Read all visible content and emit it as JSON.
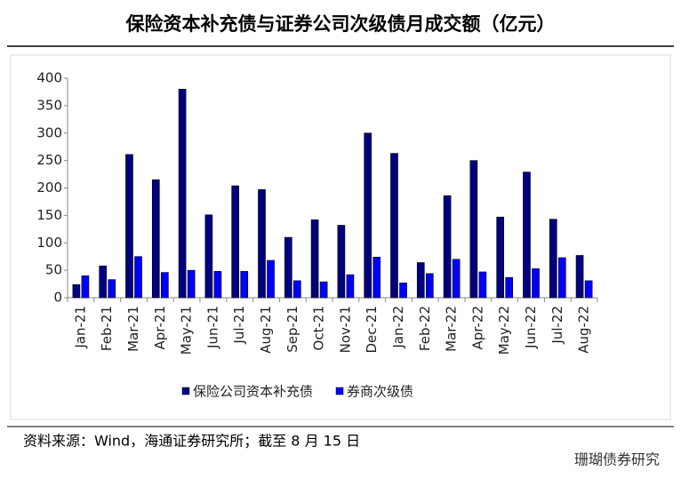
{
  "chart_data": {
    "type": "bar",
    "title": "保险资本补充债与证券公司次级债月成交额（亿元）",
    "categories": [
      "Jan-21",
      "Feb-21",
      "Mar-21",
      "Apr-21",
      "May-21",
      "Jun-21",
      "Jul-21",
      "Aug-21",
      "Sep-21",
      "Oct-21",
      "Nov-21",
      "Dec-21",
      "Jan-22",
      "Feb-22",
      "Mar-22",
      "Apr-22",
      "May-22",
      "Jun-22",
      "Jul-22",
      "Aug-22"
    ],
    "series": [
      {
        "name": "保险公司资本补充债",
        "color": "#000080",
        "values": [
          24,
          58,
          261,
          215,
          380,
          151,
          204,
          197,
          110,
          142,
          132,
          300,
          263,
          64,
          186,
          250,
          147,
          229,
          143,
          77
        ]
      },
      {
        "name": "券商次级债",
        "color": "#0000ff",
        "values": [
          40,
          33,
          75,
          46,
          50,
          48,
          48,
          68,
          31,
          29,
          42,
          74,
          27,
          44,
          70,
          47,
          37,
          53,
          73,
          31
        ]
      }
    ],
    "ylim": [
      0,
      400
    ],
    "yticks": [
      0,
      50,
      100,
      150,
      200,
      250,
      300,
      350,
      400
    ],
    "grid": false,
    "legend": "bottom",
    "source": "资料来源：Wind，海通证券研究所；截至 8 月 15 日",
    "watermark": "珊瑚债券研究"
  }
}
